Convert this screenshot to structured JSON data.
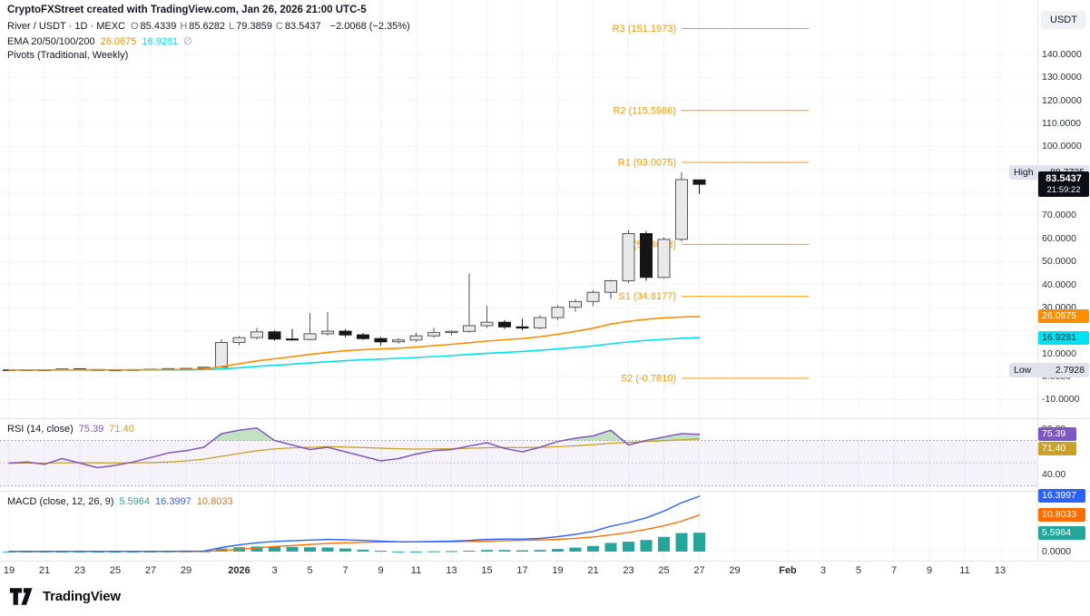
{
  "watermark": "CryptoFXStreet created with TradingView.com, Jan 26, 2026 21:00 UTC-5",
  "symbol_row": {
    "title": "River / USDT · 1D · MEXC",
    "items": [
      {
        "k": "O",
        "v": "85.4339"
      },
      {
        "k": "H",
        "v": "85.6282"
      },
      {
        "k": "L",
        "v": "79.3859"
      },
      {
        "k": "C",
        "v": "83.5437"
      }
    ],
    "change": "−2.0068 (−2.35%)"
  },
  "ema_row": {
    "label": "EMA 20/50/100/200",
    "v1": "26.0675",
    "v2": "16.9281",
    "suffix": "∅"
  },
  "pivots_row": {
    "label": "Pivots (Traditional, Weekly)"
  },
  "rsi_legend": {
    "label": "RSI (14, close)",
    "rsi": "75.39",
    "ma": "71.40"
  },
  "macd_legend": {
    "label": "MACD (close, 12, 26, 9)",
    "hist": "5.5964",
    "macd": "16.3997",
    "signal": "10.8033"
  },
  "price_axis": {
    "currency": "USDT",
    "ticks": [
      140,
      130,
      120,
      110,
      100,
      70,
      60,
      50,
      40,
      30,
      10,
      0,
      -10
    ],
    "high": {
      "label": "High",
      "value": 88.7725
    },
    "low": {
      "label": "Low",
      "value": 2.7928
    },
    "last": {
      "value": "83.5437",
      "countdown": "21:59:22"
    },
    "ema_badges": [
      {
        "value": "26.0675",
        "color": "ema_fast",
        "dark_text": false
      },
      {
        "value": "16.9281",
        "color": "ema_slow",
        "dark_text": true
      }
    ]
  },
  "rsi_axis": {
    "ticks": [
      80,
      40
    ],
    "badges": [
      {
        "value": "75.39",
        "v": 75.39,
        "color": "rsi"
      },
      {
        "value": "71.40",
        "v": 71.4,
        "color": "rsi_ma"
      }
    ]
  },
  "macd_axis": {
    "ticks": [
      0
    ],
    "badges": [
      {
        "value": "16.3997",
        "v": 16.3997,
        "color": "macd"
      },
      {
        "value": "10.8033",
        "v": 10.8033,
        "color": "signal"
      },
      {
        "value": "5.5964",
        "v": 5.5964,
        "color": "hist"
      }
    ]
  },
  "logo": {
    "text": "TradingView"
  },
  "colors": {
    "text": "#131722",
    "muted_label": "#6b7280",
    "grid": "#f0f3fa",
    "sep": "#e0e3eb",
    "up_fill": "#e9e9e9",
    "up_border": "#555555",
    "down": "#161616",
    "ema_fast": "#ff8d00",
    "ema_slow": "#00e1f2",
    "pivot": "#ff9800",
    "rsi": "#7e57c2",
    "rsi_ma": "#c9a227",
    "rsi_band": "rgba(126,87,194,0.08)",
    "band_line": "#a9abb8",
    "rsi_fill": "rgba(76,175,80,0.35)",
    "macd": "#2962ff",
    "signal": "#ff6d00",
    "hist": "#26a69a",
    "badge_price_bg": "#0b0e14",
    "hl_badge_bg": "#e0e3eb",
    "axis_pill_bg": "#eff2f5"
  },
  "chart_data": {
    "type": "candlestick",
    "symbol": "River / USDT",
    "interval": "1D",
    "exchange": "MEXC",
    "ylim": {
      "price": [
        -18.5,
        163.6
      ],
      "rsi": [
        24.8,
        88.8
      ],
      "macd": [
        -2.69,
        17.74
      ]
    },
    "dates": [
      "Dec 19",
      "Dec 20",
      "Dec 21",
      "Dec 22",
      "Dec 23",
      "Dec 24",
      "Dec 25",
      "Dec 26",
      "Dec 27",
      "Dec 28",
      "Dec 29",
      "Dec 30",
      "Dec 31",
      "Jan 1",
      "Jan 2",
      "Jan 3",
      "Jan 4",
      "Jan 5",
      "Jan 6",
      "Jan 7",
      "Jan 8",
      "Jan 9",
      "Jan 10",
      "Jan 11",
      "Jan 12",
      "Jan 13",
      "Jan 14",
      "Jan 15",
      "Jan 16",
      "Jan 17",
      "Jan 18",
      "Jan 19",
      "Jan 20",
      "Jan 21",
      "Jan 22",
      "Jan 23",
      "Jan 24",
      "Jan 25",
      "Jan 26",
      "Jan 27"
    ],
    "candles": [
      [
        2.85,
        3.05,
        2.7928,
        2.95
      ],
      [
        2.95,
        3.1,
        2.8,
        3.0
      ],
      [
        3.0,
        3.2,
        2.85,
        2.92
      ],
      [
        2.92,
        3.45,
        2.85,
        3.35
      ],
      [
        3.35,
        3.5,
        2.95,
        3.05
      ],
      [
        3.05,
        3.15,
        2.85,
        2.95
      ],
      [
        2.95,
        3.05,
        2.8,
        2.88
      ],
      [
        2.88,
        3.1,
        2.8,
        3.02
      ],
      [
        3.02,
        3.3,
        2.95,
        3.2
      ],
      [
        3.2,
        3.55,
        3.1,
        3.45
      ],
      [
        3.45,
        3.75,
        3.25,
        3.55
      ],
      [
        3.55,
        4.2,
        3.4,
        4.05
      ],
      [
        4.05,
        16.2,
        3.95,
        14.8
      ],
      [
        14.8,
        17.6,
        13.6,
        16.9
      ],
      [
        16.9,
        21.2,
        16.1,
        19.4
      ],
      [
        19.4,
        20.1,
        15.6,
        16.3
      ],
      [
        16.3,
        20.6,
        15.5,
        16.1
      ],
      [
        16.1,
        27.6,
        15.7,
        18.6
      ],
      [
        18.6,
        28.1,
        17.6,
        19.7
      ],
      [
        19.7,
        20.6,
        17.1,
        18.1
      ],
      [
        18.1,
        18.9,
        15.9,
        16.5
      ],
      [
        16.5,
        17.1,
        13.6,
        15.1
      ],
      [
        15.1,
        16.6,
        14.3,
        15.9
      ],
      [
        15.9,
        19.1,
        15.1,
        17.7
      ],
      [
        17.7,
        21.2,
        16.9,
        19.1
      ],
      [
        19.1,
        20.1,
        17.9,
        19.6
      ],
      [
        19.6,
        44.8,
        19.1,
        22.1
      ],
      [
        22.1,
        30.6,
        21.1,
        23.6
      ],
      [
        23.6,
        24.6,
        20.6,
        21.6
      ],
      [
        21.6,
        25.1,
        20.1,
        21.1
      ],
      [
        21.1,
        26.6,
        20.6,
        25.6
      ],
      [
        25.6,
        31.1,
        24.6,
        30.1
      ],
      [
        30.1,
        33.6,
        28.1,
        32.6
      ],
      [
        32.6,
        37.6,
        30.6,
        36.6
      ],
      [
        36.6,
        42.1,
        33.6,
        41.6
      ],
      [
        41.6,
        63.6,
        40.6,
        62.1
      ],
      [
        62.1,
        63.1,
        41.6,
        43.1
      ],
      [
        43.1,
        60.6,
        42.6,
        59.6
      ],
      [
        59.6,
        88.7725,
        58.6,
        85.5505
      ],
      [
        85.4339,
        85.6282,
        79.3859,
        83.5437
      ]
    ],
    "ema20": [
      2.85,
      2.86,
      2.87,
      2.9,
      2.92,
      2.92,
      2.91,
      2.92,
      2.95,
      3.0,
      3.07,
      3.18,
      4.3,
      5.6,
      6.8,
      7.7,
      8.6,
      9.6,
      10.5,
      11.2,
      11.7,
      12.0,
      12.3,
      12.8,
      13.4,
      14.0,
      14.7,
      15.4,
      16.0,
      16.5,
      17.3,
      18.4,
      19.6,
      21.0,
      22.8,
      24.0,
      24.9,
      25.5,
      25.9,
      26.0675
    ],
    "ema50": [
      2.85,
      2.85,
      2.86,
      2.87,
      2.88,
      2.88,
      2.88,
      2.88,
      2.89,
      2.9,
      2.93,
      2.97,
      3.3,
      3.8,
      4.4,
      4.9,
      5.4,
      5.9,
      6.4,
      6.9,
      7.3,
      7.6,
      7.9,
      8.3,
      8.7,
      9.1,
      9.6,
      10.1,
      10.5,
      10.9,
      11.4,
      12.0,
      12.6,
      13.3,
      14.2,
      15.0,
      15.7,
      16.2,
      16.6,
      16.9281
    ],
    "pivots": [
      {
        "label": "R3 (151.1973)",
        "value": 151.1973
      },
      {
        "label": "R2 (115.5986)",
        "value": 115.5986
      },
      {
        "label": "R1 (93.0075)",
        "value": 93.0075
      },
      {
        "label": "P (57.4088)",
        "value": 57.4088
      },
      {
        "label": "S1 (34.8177)",
        "value": 34.8177
      },
      {
        "label": "S2 (-0.7810)",
        "value": -0.781
      }
    ],
    "pivot_span_days": [
      38,
      45.2
    ],
    "rsi": [
      50,
      51,
      49,
      54,
      50,
      46,
      48,
      51,
      55,
      59,
      61,
      64,
      76,
      79,
      81,
      70,
      66,
      62,
      64,
      60,
      56,
      52,
      54,
      58,
      61,
      62,
      65,
      68,
      63,
      60,
      64,
      69,
      72,
      74,
      79,
      66,
      70,
      73,
      76,
      75.39
    ],
    "rsi_ma": [
      50,
      50,
      50,
      50.3,
      50.4,
      50.2,
      50.1,
      50.2,
      50.5,
      51,
      52,
      53.5,
      56,
      58.5,
      61,
      62.5,
      63.5,
      64,
      64.5,
      64.2,
      63.8,
      63.2,
      62.6,
      62.4,
      62.5,
      62.7,
      63.1,
      63.6,
      63.8,
      63.7,
      63.9,
      64.5,
      65.3,
      66.2,
      67.5,
      68.2,
      69,
      69.8,
      70.6,
      71.4
    ],
    "macd": [
      0.05,
      0.05,
      0.05,
      0.06,
      0.06,
      0.05,
      0.05,
      0.06,
      0.07,
      0.09,
      0.11,
      0.15,
      1.2,
      2.0,
      2.6,
      3.0,
      3.2,
      3.4,
      3.6,
      3.5,
      3.3,
      3.1,
      2.9,
      2.9,
      3.0,
      3.1,
      3.3,
      3.6,
      3.7,
      3.7,
      3.9,
      4.4,
      5.1,
      6.0,
      7.5,
      8.6,
      10.0,
      12.0,
      14.5,
      16.3997
    ],
    "signal": [
      0.03,
      0.03,
      0.03,
      0.04,
      0.04,
      0.04,
      0.04,
      0.04,
      0.05,
      0.05,
      0.06,
      0.08,
      0.3,
      0.7,
      1.1,
      1.5,
      1.8,
      2.1,
      2.4,
      2.6,
      2.75,
      2.85,
      2.87,
      2.88,
      2.9,
      2.95,
      3.02,
      3.12,
      3.24,
      3.33,
      3.45,
      3.62,
      3.92,
      4.33,
      4.95,
      5.68,
      6.55,
      7.64,
      9.01,
      10.8033
    ],
    "x_axis": {
      "labels": [
        {
          "t": "19",
          "d": 0
        },
        {
          "t": "21",
          "d": 2
        },
        {
          "t": "23",
          "d": 4
        },
        {
          "t": "25",
          "d": 6
        },
        {
          "t": "27",
          "d": 8
        },
        {
          "t": "29",
          "d": 10
        },
        {
          "t": "2026",
          "d": 13,
          "bold": true
        },
        {
          "t": "3",
          "d": 15
        },
        {
          "t": "5",
          "d": 17
        },
        {
          "t": "7",
          "d": 19
        },
        {
          "t": "9",
          "d": 21
        },
        {
          "t": "11",
          "d": 23
        },
        {
          "t": "13",
          "d": 25
        },
        {
          "t": "15",
          "d": 27
        },
        {
          "t": "17",
          "d": 29
        },
        {
          "t": "19",
          "d": 31
        },
        {
          "t": "21",
          "d": 33
        },
        {
          "t": "23",
          "d": 35
        },
        {
          "t": "25",
          "d": 37
        },
        {
          "t": "27",
          "d": 39
        },
        {
          "t": "29",
          "d": 41
        },
        {
          "t": "Feb",
          "d": 44,
          "bold": true
        },
        {
          "t": "3",
          "d": 46
        },
        {
          "t": "5",
          "d": 48
        },
        {
          "t": "7",
          "d": 50
        },
        {
          "t": "9",
          "d": 52
        },
        {
          "t": "11",
          "d": 54
        },
        {
          "t": "13",
          "d": 56
        }
      ]
    }
  }
}
